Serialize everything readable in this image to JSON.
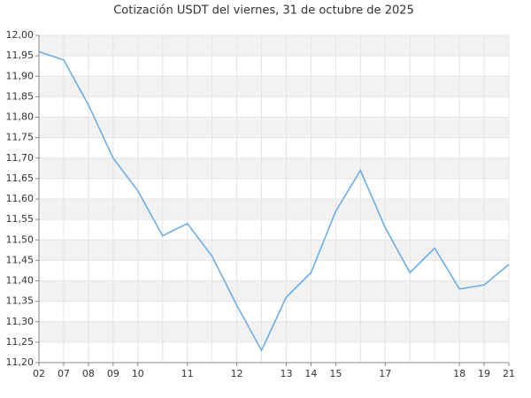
{
  "chart_data": {
    "type": "line",
    "title": "Cotización USDT del viernes, 31 de octubre de 2025",
    "categories": [
      "02",
      "07",
      "08",
      "09",
      "10",
      null,
      "11",
      null,
      "12",
      null,
      "13",
      "14",
      "15",
      null,
      "17",
      null,
      null,
      "18",
      "19",
      "21"
    ],
    "values": [
      11.96,
      11.94,
      11.83,
      11.7,
      11.62,
      11.51,
      11.54,
      11.46,
      11.34,
      11.23,
      11.36,
      11.42,
      11.57,
      11.67,
      11.53,
      11.42,
      11.48,
      11.38,
      11.39,
      11.44
    ],
    "color": "#6aaee8",
    "ylim": [
      11.2,
      12.0
    ],
    "yticks": [
      {
        "value": 11.2,
        "label": "11,20"
      },
      {
        "value": 11.25,
        "label": "11,25"
      },
      {
        "value": 11.3,
        "label": "11,30"
      },
      {
        "value": 11.35,
        "label": "11,35"
      },
      {
        "value": 11.4,
        "label": "11,40"
      },
      {
        "value": 11.45,
        "label": "11,45"
      },
      {
        "value": 11.5,
        "label": "11,50"
      },
      {
        "value": 11.55,
        "label": "11,55"
      },
      {
        "value": 11.6,
        "label": "11,60"
      },
      {
        "value": 11.65,
        "label": "11,65"
      },
      {
        "value": 11.7,
        "label": "11,70"
      },
      {
        "value": 11.75,
        "label": "11,75"
      },
      {
        "value": 11.8,
        "label": "11,80"
      },
      {
        "value": 11.85,
        "label": "11,85"
      },
      {
        "value": 11.9,
        "label": "11,90"
      },
      {
        "value": 11.95,
        "label": "11,95"
      },
      {
        "value": 12.0,
        "label": "12,00"
      }
    ],
    "grid": true
  }
}
